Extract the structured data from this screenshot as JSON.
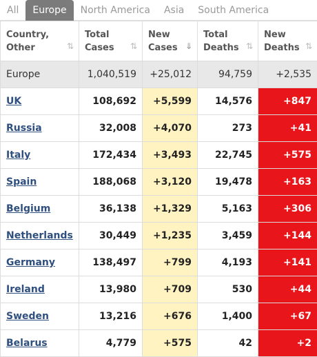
{
  "tabs": [
    {
      "label": "All",
      "active": false
    },
    {
      "label": "Europe",
      "active": true
    },
    {
      "label": "North America",
      "active": false
    },
    {
      "label": "Asia",
      "active": false
    },
    {
      "label": "South America",
      "active": false
    }
  ],
  "headers": [
    {
      "line1": "Country,",
      "line2": "Other",
      "sort_icon": "sort-icon",
      "sorted": false
    },
    {
      "line1": "Total",
      "line2": "Cases",
      "sort_icon": "sort-icon",
      "sorted": false
    },
    {
      "line1": "New",
      "line2": "Cases",
      "sort_icon": "sort-descending-icon",
      "sorted": true
    },
    {
      "line1": "Total",
      "line2": "Deaths",
      "sort_icon": "sort-icon",
      "sorted": false
    },
    {
      "line1": "New",
      "line2": "Deaths",
      "sort_icon": "sort-icon",
      "sorted": false
    }
  ],
  "total_row": {
    "country": "Europe",
    "total_cases": "1,040,519",
    "new_cases": "+25,012",
    "total_deaths": "94,759",
    "new_deaths": "+2,535"
  },
  "rows": [
    {
      "country": "UK",
      "total_cases": "108,692",
      "new_cases": "+5,599",
      "total_deaths": "14,576",
      "new_deaths": "+847"
    },
    {
      "country": "Russia",
      "total_cases": "32,008",
      "new_cases": "+4,070",
      "total_deaths": "273",
      "new_deaths": "+41"
    },
    {
      "country": "Italy",
      "total_cases": "172,434",
      "new_cases": "+3,493",
      "total_deaths": "22,745",
      "new_deaths": "+575"
    },
    {
      "country": "Spain",
      "total_cases": "188,068",
      "new_cases": "+3,120",
      "total_deaths": "19,478",
      "new_deaths": "+163"
    },
    {
      "country": "Belgium",
      "total_cases": "36,138",
      "new_cases": "+1,329",
      "total_deaths": "5,163",
      "new_deaths": "+306"
    },
    {
      "country": "Netherlands",
      "total_cases": "30,449",
      "new_cases": "+1,235",
      "total_deaths": "3,459",
      "new_deaths": "+144"
    },
    {
      "country": "Germany",
      "total_cases": "138,497",
      "new_cases": "+799",
      "total_deaths": "4,193",
      "new_deaths": "+141"
    },
    {
      "country": "Ireland",
      "total_cases": "13,980",
      "new_cases": "+709",
      "total_deaths": "530",
      "new_deaths": "+44"
    },
    {
      "country": "Sweden",
      "total_cases": "13,216",
      "new_cases": "+676",
      "total_deaths": "1,400",
      "new_deaths": "+67"
    },
    {
      "country": "Belarus",
      "total_cases": "4,779",
      "new_cases": "+575",
      "total_deaths": "42",
      "new_deaths": "+2"
    }
  ],
  "colors": {
    "new_cases_bg": "#fff3c2",
    "new_deaths_bg": "#e8151b",
    "total_row_bg": "#e8e8e8",
    "active_tab_bg": "#7b7b7b",
    "link": "#2f4f7f"
  }
}
